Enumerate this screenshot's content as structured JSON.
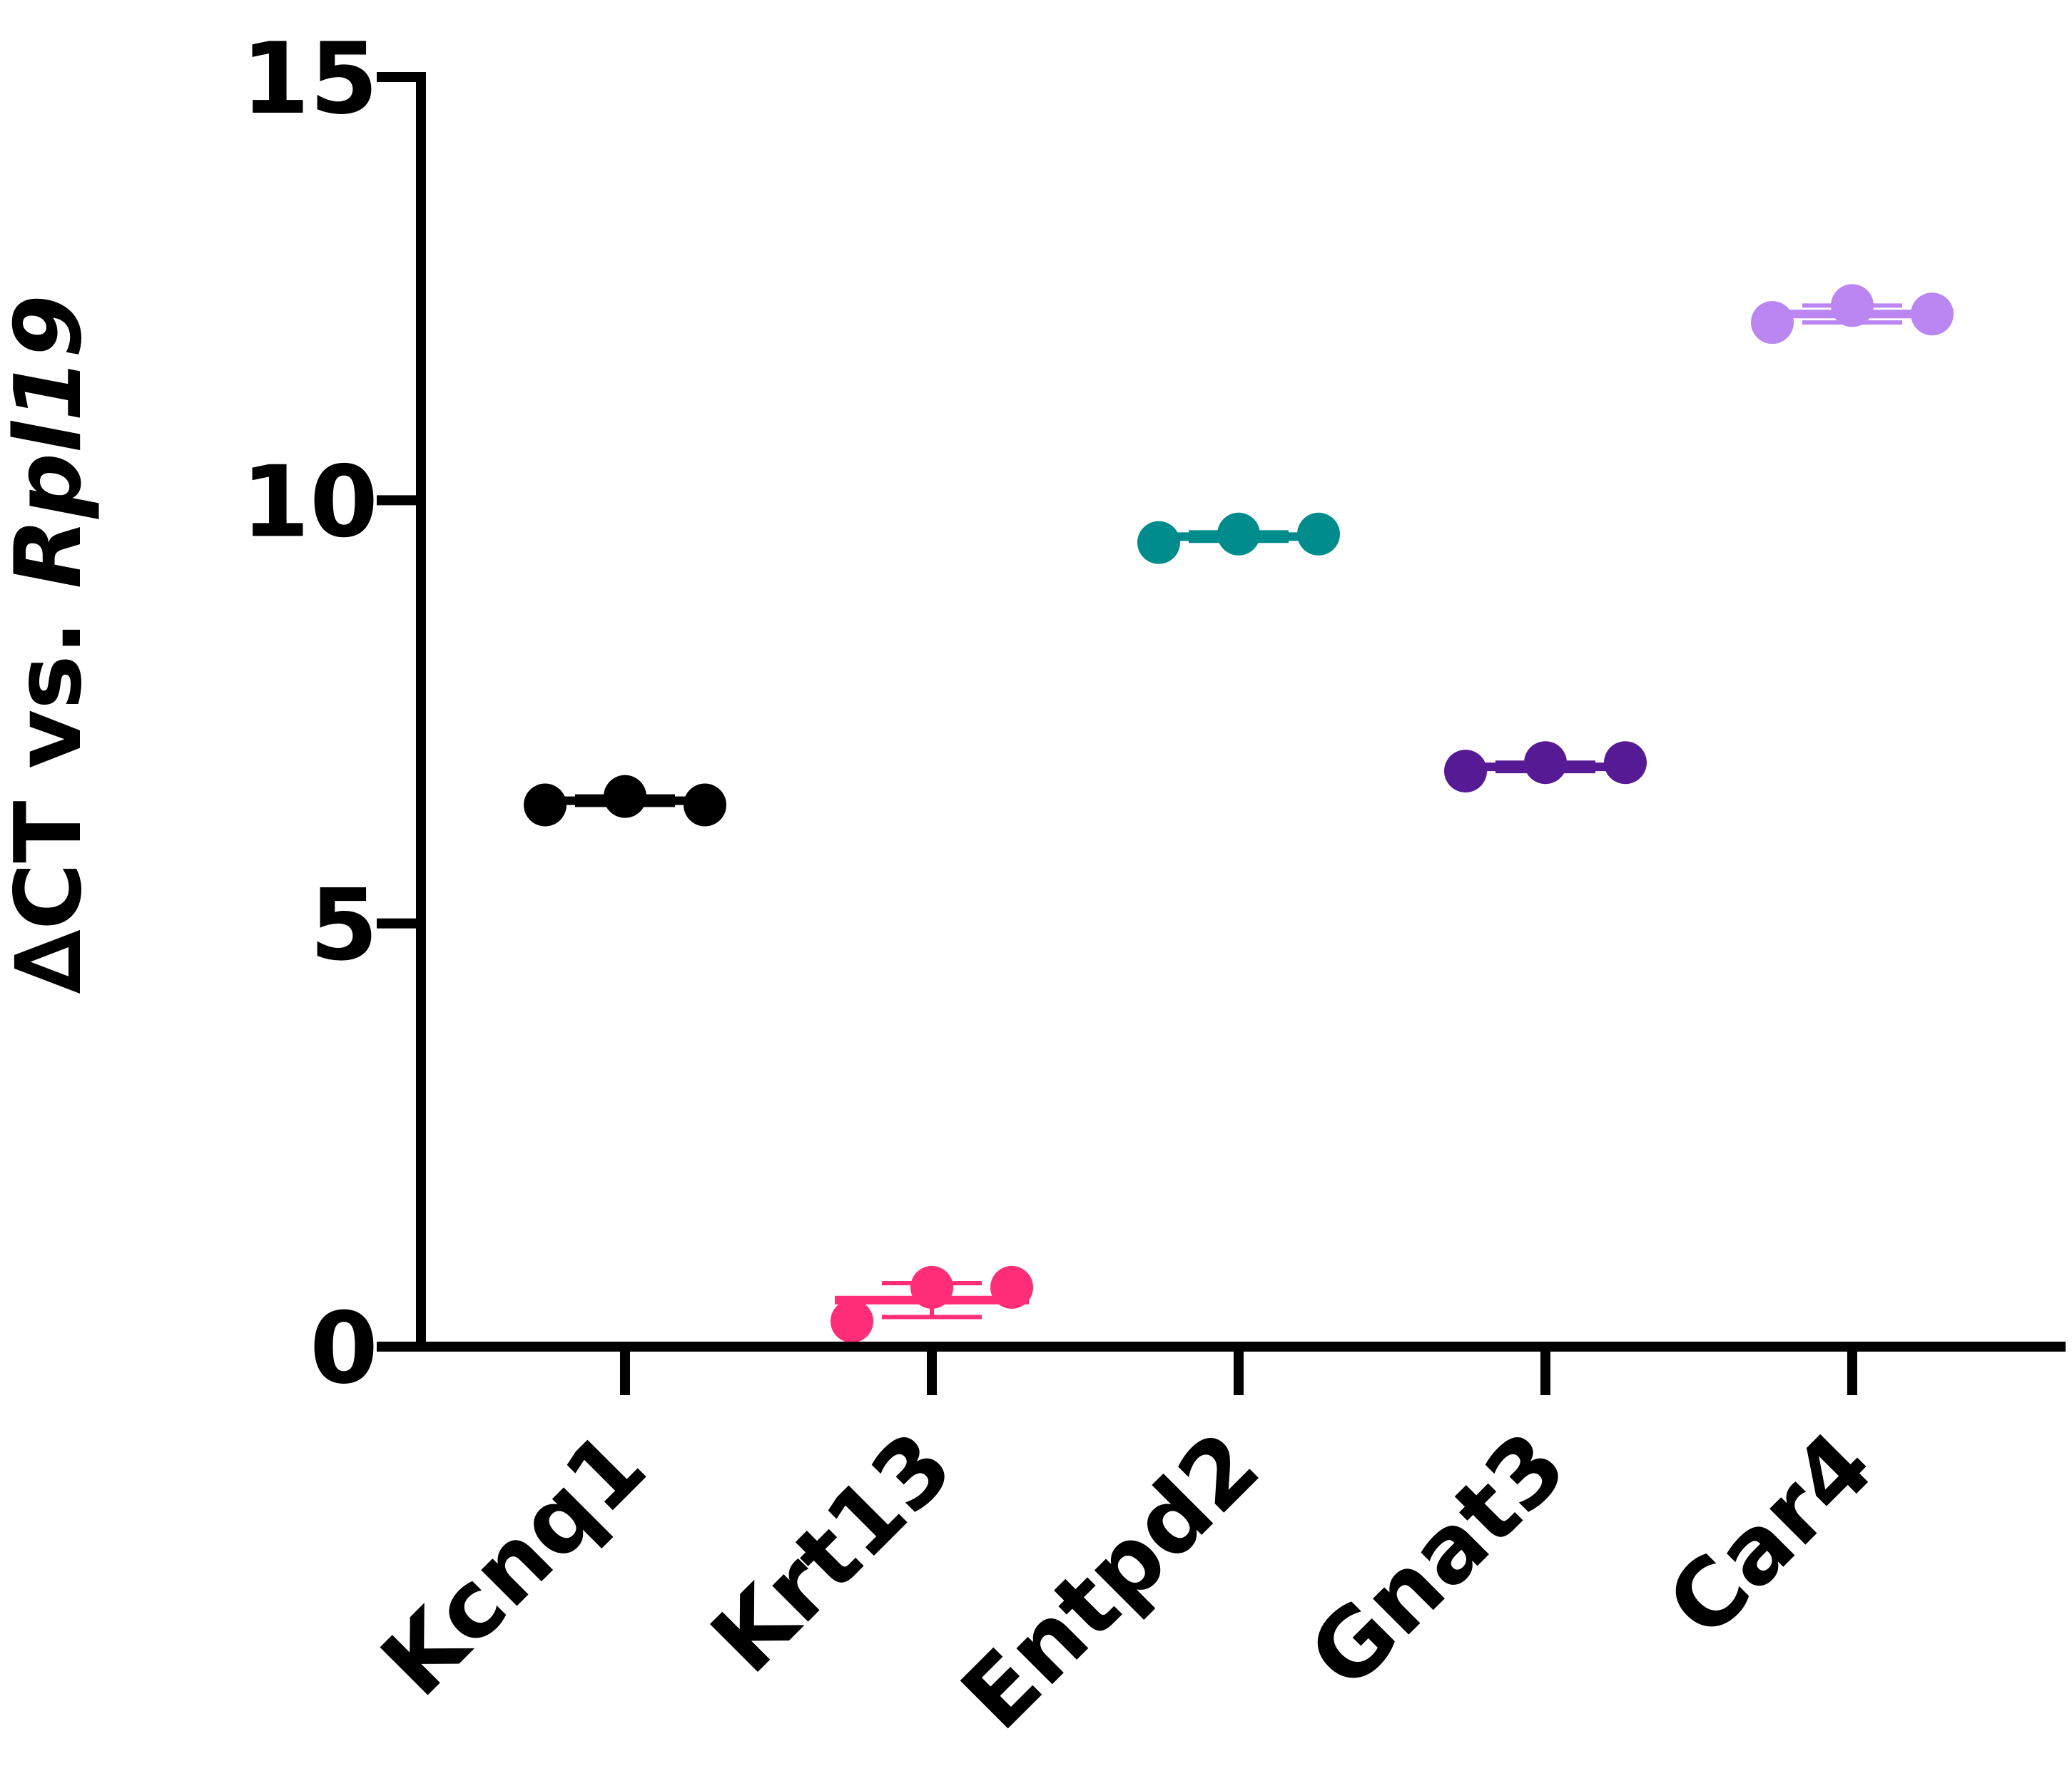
{
  "chart_data": {
    "type": "scatter",
    "title": "",
    "xlabel": "",
    "ylabel": "∆CT vs. ",
    "ylabel_italic": "Rpl19",
    "ylim": [
      0,
      15
    ],
    "yticks": [
      0,
      5,
      10,
      15
    ],
    "grid": false,
    "categories": [
      "Kcnq1",
      "Krt13",
      "Entpd2",
      "Gnat3",
      "Car4"
    ],
    "series": [
      {
        "category": "Kcnq1",
        "color": "#000000",
        "points": [
          6.4,
          6.5,
          6.4
        ],
        "mean": 6.45,
        "error": 0.05
      },
      {
        "category": "Krt13",
        "color": "#ff2d78",
        "points": [
          0.3,
          0.7,
          0.7
        ],
        "mean": 0.55,
        "error": 0.2
      },
      {
        "category": "Entpd2",
        "color": "#008c8c",
        "points": [
          9.5,
          9.6,
          9.6
        ],
        "mean": 9.57,
        "error": 0.05
      },
      {
        "category": "Gnat3",
        "color": "#571a95",
        "points": [
          6.8,
          6.9,
          6.9
        ],
        "mean": 6.85,
        "error": 0.05
      },
      {
        "category": "Car4",
        "color": "#bb86f2",
        "points": [
          12.1,
          12.3,
          12.2
        ],
        "mean": 12.2,
        "error": 0.1
      }
    ]
  }
}
